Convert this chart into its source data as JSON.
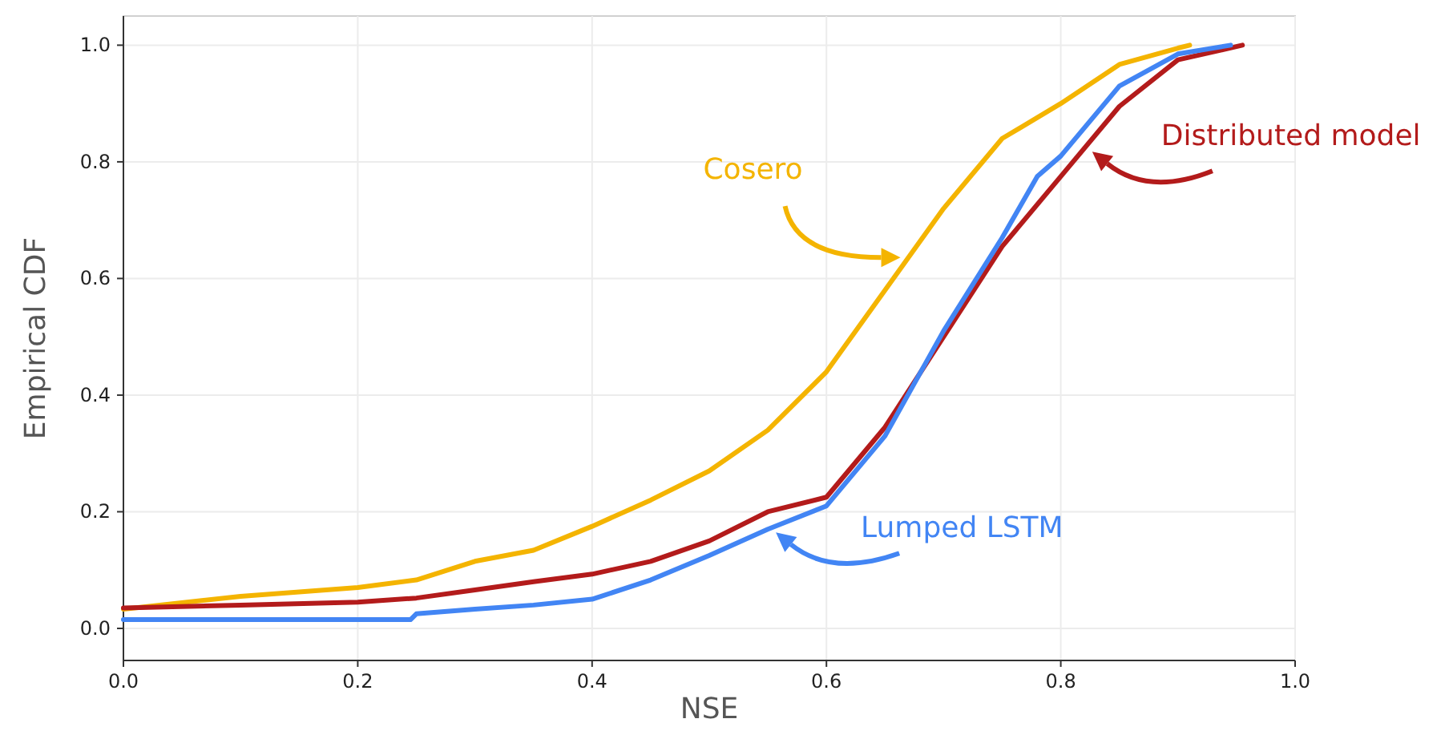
{
  "chart_data": {
    "type": "line",
    "xlabel": "NSE",
    "ylabel": "Empirical CDF",
    "xlim": [
      0,
      1
    ],
    "ylim": [
      -0.055,
      1.05
    ],
    "xticks": [
      {
        "value": 0,
        "label": "0.0"
      },
      {
        "value": 0.2,
        "label": "0.2"
      },
      {
        "value": 0.4,
        "label": "0.4"
      },
      {
        "value": 0.6,
        "label": "0.6"
      },
      {
        "value": 0.8,
        "label": "0.8"
      },
      {
        "value": 1,
        "label": "1.0"
      }
    ],
    "yticks": [
      {
        "value": 0,
        "label": "0.0"
      },
      {
        "value": 0.2,
        "label": "0.2"
      },
      {
        "value": 0.4,
        "label": "0.4"
      },
      {
        "value": 0.6,
        "label": "0.6"
      },
      {
        "value": 0.8,
        "label": "0.8"
      },
      {
        "value": 1,
        "label": "1.0"
      }
    ],
    "grid": true,
    "marker": "none",
    "line_style": "solid",
    "series": [
      {
        "name": "Cosero",
        "color": "#f4b400",
        "x": [
          0,
          0.1,
          0.2,
          0.25,
          0.3,
          0.35,
          0.4,
          0.45,
          0.5,
          0.55,
          0.6,
          0.65,
          0.7,
          0.75,
          0.8,
          0.85,
          0.9,
          0.91
        ],
        "values": [
          0.033,
          0.055,
          0.07,
          0.083,
          0.115,
          0.134,
          0.175,
          0.22,
          0.27,
          0.34,
          0.44,
          0.58,
          0.72,
          0.84,
          0.9,
          0.967,
          0.995,
          1.0
        ]
      },
      {
        "name": "Lumped LSTM",
        "color": "#4285f4",
        "x": [
          0,
          0.245,
          0.25,
          0.3,
          0.35,
          0.4,
          0.45,
          0.5,
          0.55,
          0.6,
          0.65,
          0.7,
          0.75,
          0.78,
          0.8,
          0.85,
          0.9,
          0.945
        ],
        "values": [
          0.015,
          0.015,
          0.025,
          0.033,
          0.04,
          0.05,
          0.083,
          0.125,
          0.17,
          0.21,
          0.33,
          0.51,
          0.67,
          0.775,
          0.81,
          0.93,
          0.985,
          1.0
        ]
      },
      {
        "name": "Distributed model",
        "color": "#b31b1b",
        "x": [
          0,
          0.1,
          0.2,
          0.25,
          0.3,
          0.35,
          0.4,
          0.45,
          0.5,
          0.55,
          0.6,
          0.65,
          0.7,
          0.75,
          0.8,
          0.85,
          0.9,
          0.955
        ],
        "values": [
          0.035,
          0.04,
          0.045,
          0.052,
          0.066,
          0.08,
          0.093,
          0.115,
          0.15,
          0.2,
          0.225,
          0.345,
          0.5,
          0.655,
          0.775,
          0.895,
          0.975,
          1.0
        ]
      }
    ]
  }
}
